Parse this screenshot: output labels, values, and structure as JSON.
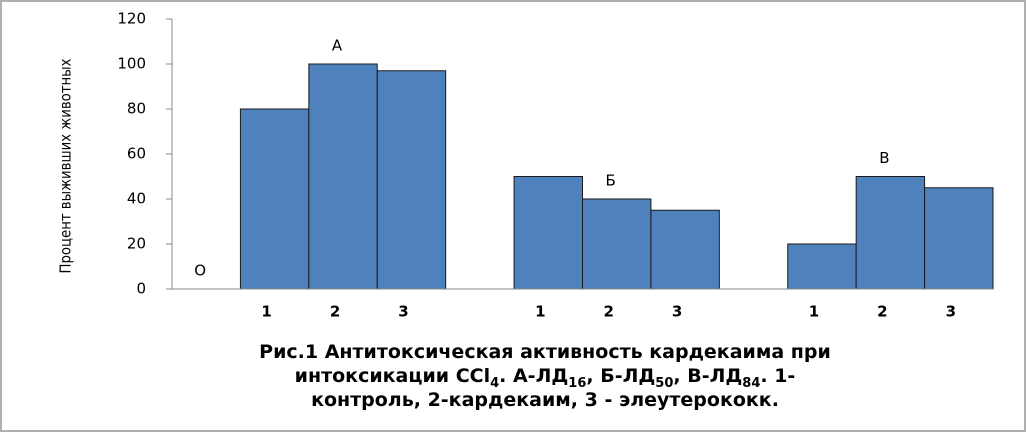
{
  "chart_data": {
    "type": "bar",
    "y_label": "Процент выживших животных",
    "categories": [
      null,
      "1",
      "2",
      "3",
      null,
      "1",
      "2",
      "3",
      null,
      "1",
      "2",
      "3"
    ],
    "values": [
      null,
      80,
      100,
      97,
      null,
      50,
      40,
      35,
      null,
      20,
      50,
      45
    ],
    "color": "#4f81bd",
    "ylim": [
      0,
      120
    ],
    "yticks": [
      0,
      20,
      40,
      60,
      80,
      100,
      120
    ],
    "annotations": [
      {
        "text": "О",
        "category": 0
      },
      {
        "text": "А",
        "category": 2
      },
      {
        "text": "Б",
        "category": 6
      },
      {
        "text": "В",
        "category": 10
      }
    ],
    "caption": [
      [
        {
          "text": "Рис.1 Антитоксическая активность кардекаима при"
        }
      ],
      [
        {
          "text": "интоксикации CCl"
        },
        {
          "text": "4",
          "sub": true
        },
        {
          "text": ". А-ЛД"
        },
        {
          "text": "16",
          "sub": true
        },
        {
          "text": ", Б-ЛД"
        },
        {
          "text": "50",
          "sub": true
        },
        {
          "text": ", В-ЛД"
        },
        {
          "text": "84",
          "sub": true
        },
        {
          "text": ". 1-"
        }
      ],
      [
        {
          "text": "контроль, 2-кардекаим, 3 - элеутерококк."
        }
      ]
    ]
  }
}
